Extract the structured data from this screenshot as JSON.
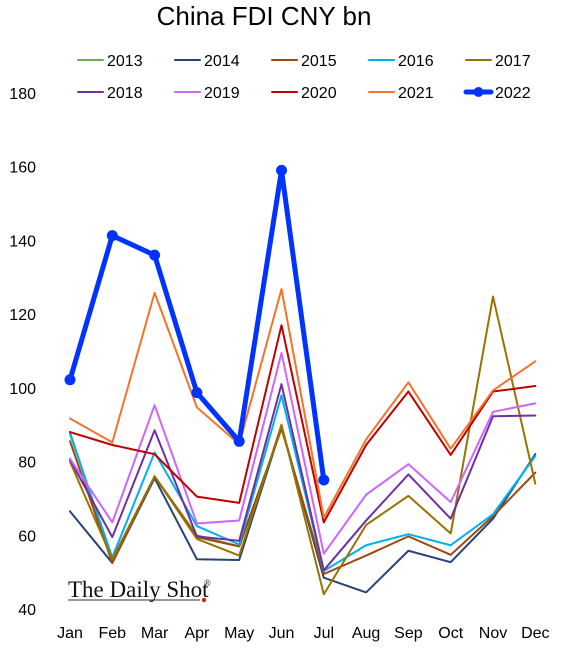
{
  "chart_data": {
    "type": "line",
    "title": "China FDI CNY bn",
    "xlabel": "",
    "ylabel": "",
    "ylim": [
      40,
      180
    ],
    "yticks": [
      40,
      60,
      80,
      100,
      120,
      140,
      160,
      180
    ],
    "grid": false,
    "legend_position": "top",
    "categories": [
      "Jan",
      "Feb",
      "Mar",
      "Apr",
      "May",
      "Jun",
      "Jul",
      "Aug",
      "Sep",
      "Oct",
      "Nov",
      "Dec"
    ],
    "series": [
      {
        "name": "2013",
        "color": "#70ad47",
        "width": 2,
        "markers": false,
        "values": [
          88,
          53,
          76,
          60,
          57,
          89,
          50,
          null,
          null,
          null,
          null,
          null
        ]
      },
      {
        "name": "2014",
        "color": "#264478",
        "width": 2,
        "markers": false,
        "values": [
          66.5,
          52.5,
          75.5,
          53.5,
          53.3,
          89.5,
          48.5,
          44.5,
          55.8,
          52.7,
          64.5,
          82
        ]
      },
      {
        "name": "2015",
        "color": "#9e480e",
        "width": 2,
        "markers": false,
        "values": [
          85.5,
          52.5,
          76,
          59.5,
          57,
          89,
          49.5,
          54.5,
          59.7,
          54.7,
          65.2,
          77
        ]
      },
      {
        "name": "2016",
        "color": "#00b0f0",
        "width": 2,
        "markers": false,
        "values": [
          87.5,
          54,
          82.5,
          62.5,
          57.5,
          98,
          50.3,
          57.3,
          60.3,
          57.3,
          65.7,
          81.5
        ]
      },
      {
        "name": "2017",
        "color": "#997300",
        "width": 2,
        "markers": false,
        "values": [
          80,
          53.5,
          76,
          59,
          54.5,
          90,
          44,
          62.8,
          70.7,
          60.5,
          124.8,
          74
        ]
      },
      {
        "name": "2018",
        "color": "#7030a0",
        "width": 2,
        "markers": false,
        "values": [
          80.5,
          59.5,
          88.5,
          59.7,
          58.5,
          101,
          50.5,
          64,
          76.5,
          64.5,
          92.3,
          92.5
        ]
      },
      {
        "name": "2019",
        "color": "#cc66ff",
        "width": 2,
        "markers": false,
        "values": [
          80.8,
          63.5,
          95.3,
          63.2,
          64,
          109.5,
          55,
          71,
          79.3,
          69,
          93.5,
          95.8
        ]
      },
      {
        "name": "2020",
        "color": "#c00000",
        "width": 2,
        "markers": false,
        "values": [
          88,
          84.5,
          82,
          70.5,
          68.8,
          117,
          63.5,
          84.5,
          99,
          81.8,
          99,
          100.5
        ]
      },
      {
        "name": "2021",
        "color": "#f4732b",
        "width": 2,
        "markers": false,
        "values": [
          91.7,
          85.2,
          125.8,
          94.7,
          84.7,
          126.8,
          64.8,
          86,
          101.5,
          83.5,
          99.3,
          107.2
        ]
      },
      {
        "name": "2022",
        "color": "#0033ff",
        "width": 5,
        "markers": true,
        "values": [
          102.2,
          141.3,
          136,
          98.7,
          85.5,
          159,
          75,
          null,
          null,
          null,
          null,
          null
        ]
      }
    ]
  },
  "watermark": {
    "text": "The Daily Shot",
    "symbol": "®"
  }
}
